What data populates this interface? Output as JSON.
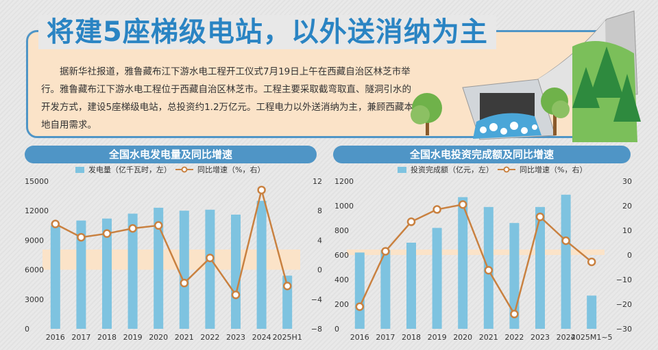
{
  "title": "将建5座梯级电站，以外送消纳为主",
  "intro": "据新华社报道，雅鲁藏布江下游水电工程开工仪式7月19日上午在西藏自治区林芝市举行。雅鲁藏布江下游水电工程位于西藏自治区林芝市。工程主要采取截弯取直、隧洞引水的开发方式，建设5座梯级电站，总投资约1.2万亿元。工程电力以外送消纳为主，兼顾西藏本地自用需求。",
  "colors": {
    "bar": "#7ec3e0",
    "line": "#c98140",
    "band": "#fbe3c8",
    "accent": "#4f95c6"
  },
  "chart_data": [
    {
      "type": "bar+line",
      "title": "全国水电发电量及同比增速",
      "categories": [
        "2016",
        "2017",
        "2018",
        "2019",
        "2020",
        "2021",
        "2022",
        "2023",
        "2024",
        "2025H1"
      ],
      "series": [
        {
          "name": "发电量（亿千瓦时，左）",
          "type": "bar",
          "axis": "left",
          "values": [
            10500,
            11000,
            11200,
            11700,
            12300,
            12000,
            12100,
            11600,
            13000,
            5400
          ]
        },
        {
          "name": "同比增速（%，右）",
          "type": "line",
          "axis": "right",
          "values": [
            6.2,
            4.4,
            4.9,
            5.6,
            6.0,
            -1.8,
            1.6,
            -3.4,
            10.8,
            -2.2
          ]
        }
      ],
      "left_axis": {
        "min": 0,
        "max": 15000,
        "ticks": [
          "0",
          "3000",
          "6000",
          "9000",
          "12000",
          "15000"
        ]
      },
      "right_axis": {
        "min": -8,
        "max": 12,
        "ticks": [
          "−8",
          "−4",
          "0",
          "4",
          "8",
          "12"
        ]
      }
    },
    {
      "type": "bar+line",
      "title": "全国水电投资完成额及同比增速",
      "categories": [
        "2016",
        "2017",
        "2018",
        "2019",
        "2020",
        "2021",
        "2022",
        "2023",
        "2024",
        "2025M1~5"
      ],
      "series": [
        {
          "name": "投资完成额（亿元，左）",
          "type": "bar",
          "axis": "left",
          "values": [
            620,
            640,
            700,
            820,
            1070,
            990,
            860,
            990,
            1090,
            270
          ]
        },
        {
          "name": "同比增速（%，右）",
          "type": "line",
          "axis": "right",
          "values": [
            -21,
            1.5,
            13.5,
            18.5,
            20.5,
            -6.2,
            -24,
            15.5,
            5.8,
            -2.8
          ]
        }
      ],
      "left_axis": {
        "min": 0,
        "max": 1200,
        "ticks": [
          "0",
          "200",
          "400",
          "600",
          "800",
          "1000",
          "1200"
        ]
      },
      "right_axis": {
        "min": -30,
        "max": 30,
        "ticks": [
          "−30",
          "−20",
          "−10",
          "0",
          "10",
          "20",
          "30"
        ]
      }
    }
  ]
}
